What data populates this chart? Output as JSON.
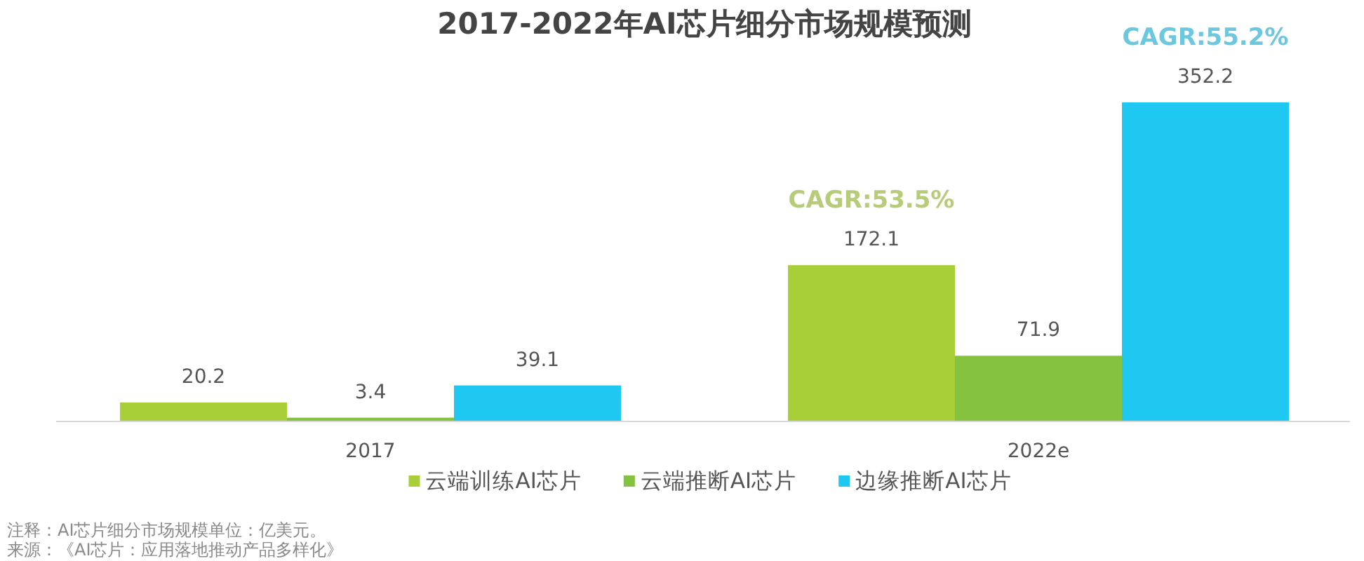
{
  "chart_data": {
    "type": "bar",
    "title": "2017-2022年AI芯片细分市场规模预测",
    "categories": [
      "2017",
      "2022e"
    ],
    "series": [
      {
        "name": "云端训练AI芯片",
        "color": "#a8cf38",
        "values": [
          20.2,
          172.1
        ]
      },
      {
        "name": "云端推断AI芯片",
        "color": "#85c240",
        "values": [
          3.4,
          71.9
        ]
      },
      {
        "name": "边缘推断AI芯片",
        "color": "#1ec8f0",
        "values": [
          39.1,
          352.2
        ]
      }
    ],
    "data_labels": true,
    "legend": "bottom",
    "tick_labels": "x",
    "annotations": [
      "CAGR:53.5%",
      "CAGR:55.2%",
      "注释：AI芯片细分市场规模单位：亿美元。",
      "来源：《AI芯片：应用落地推动产品多样化》"
    ]
  }
}
